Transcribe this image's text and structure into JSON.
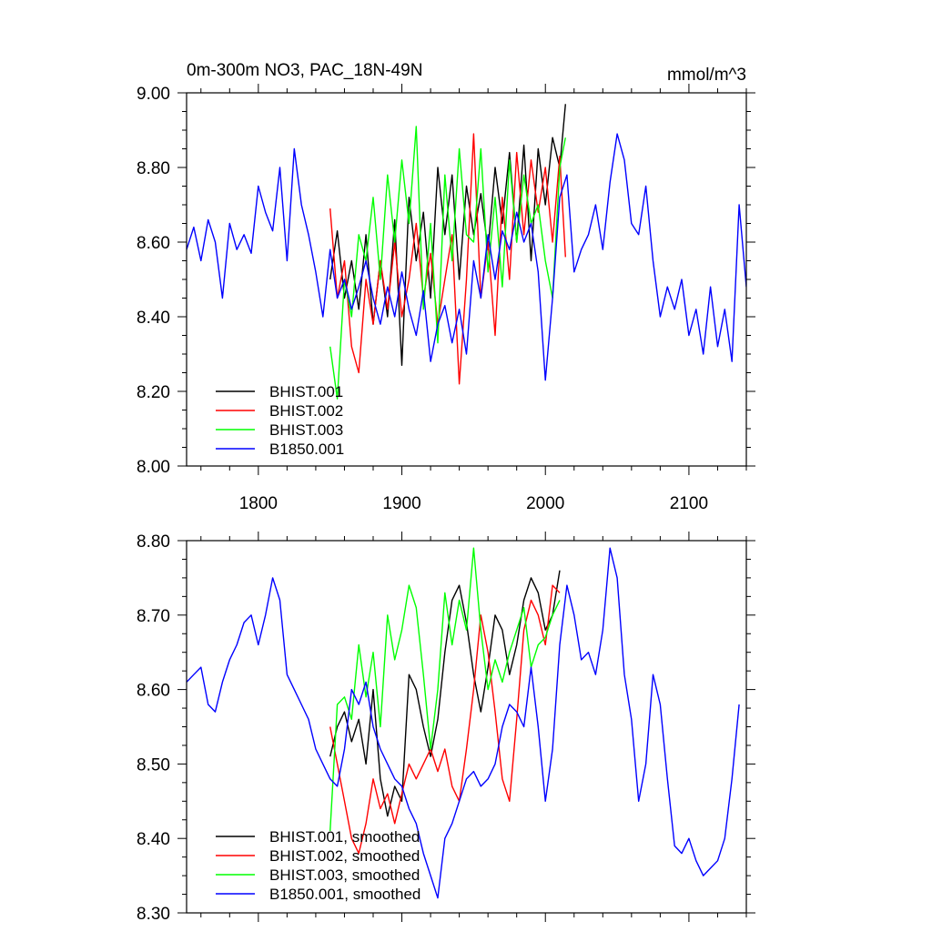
{
  "chart_data": [
    {
      "type": "line",
      "title": "0m-300m NO3, PAC_18N-49N",
      "units": "mmol/m^3",
      "xlabel": "",
      "ylabel": "",
      "xlim": [
        1750,
        2140
      ],
      "ylim": [
        8.0,
        9.0
      ],
      "y_ticks": [
        "8.00",
        "8.20",
        "8.40",
        "8.60",
        "8.80",
        "9.00"
      ],
      "x_ticks": [
        "1800",
        "1900",
        "2000",
        "2100"
      ],
      "legend_position": "bottom-left",
      "series": [
        {
          "name": "BHIST.001",
          "color": "#000000",
          "x": [
            1850,
            1855,
            1860,
            1865,
            1870,
            1875,
            1880,
            1885,
            1890,
            1895,
            1900,
            1905,
            1910,
            1915,
            1920,
            1925,
            1930,
            1935,
            1940,
            1945,
            1950,
            1955,
            1960,
            1965,
            1970,
            1975,
            1980,
            1985,
            1990,
            1995,
            2000,
            2005,
            2010,
            2014
          ],
          "y": [
            8.5,
            8.63,
            8.45,
            8.55,
            8.42,
            8.62,
            8.38,
            8.55,
            8.4,
            8.66,
            8.27,
            8.72,
            8.55,
            8.68,
            8.45,
            8.8,
            8.62,
            8.78,
            8.5,
            8.75,
            8.62,
            8.73,
            8.58,
            8.8,
            8.65,
            8.84,
            8.6,
            8.86,
            8.55,
            8.85,
            8.7,
            8.88,
            8.8,
            8.97
          ]
        },
        {
          "name": "BHIST.002",
          "color": "#ff0000",
          "x": [
            1850,
            1855,
            1860,
            1865,
            1870,
            1875,
            1880,
            1885,
            1890,
            1895,
            1900,
            1905,
            1910,
            1915,
            1920,
            1925,
            1930,
            1935,
            1940,
            1945,
            1950,
            1955,
            1960,
            1965,
            1970,
            1975,
            1980,
            1985,
            1990,
            1995,
            2000,
            2005,
            2010,
            2014
          ],
          "y": [
            8.69,
            8.45,
            8.55,
            8.32,
            8.25,
            8.5,
            8.38,
            8.55,
            8.42,
            8.6,
            8.4,
            8.5,
            8.65,
            8.45,
            8.57,
            8.38,
            8.5,
            8.62,
            8.22,
            8.5,
            8.89,
            8.45,
            8.6,
            8.35,
            8.72,
            8.5,
            8.84,
            8.62,
            8.82,
            8.68,
            8.8,
            8.6,
            8.83,
            8.56
          ]
        },
        {
          "name": "BHIST.003",
          "color": "#00ff00",
          "x": [
            1850,
            1855,
            1860,
            1865,
            1870,
            1875,
            1880,
            1885,
            1890,
            1895,
            1900,
            1905,
            1910,
            1915,
            1920,
            1925,
            1930,
            1935,
            1940,
            1945,
            1950,
            1955,
            1960,
            1965,
            1970,
            1975,
            1980,
            1985,
            1990,
            1995,
            2000,
            2005,
            2010,
            2014
          ],
          "y": [
            8.32,
            8.18,
            8.5,
            8.4,
            8.62,
            8.55,
            8.72,
            8.5,
            8.78,
            8.6,
            8.82,
            8.65,
            8.91,
            8.42,
            8.65,
            8.33,
            8.78,
            8.55,
            8.85,
            8.62,
            8.6,
            8.85,
            8.52,
            8.72,
            8.48,
            8.82,
            8.6,
            8.78,
            8.65,
            8.7,
            8.55,
            8.45,
            8.8,
            8.88
          ]
        },
        {
          "name": "B1850.001",
          "color": "#0000ff",
          "x": [
            1750,
            1755,
            1760,
            1765,
            1770,
            1775,
            1780,
            1785,
            1790,
            1795,
            1800,
            1805,
            1810,
            1815,
            1820,
            1825,
            1830,
            1835,
            1840,
            1845,
            1850,
            1855,
            1860,
            1865,
            1870,
            1875,
            1880,
            1885,
            1890,
            1895,
            1900,
            1905,
            1910,
            1915,
            1920,
            1925,
            1930,
            1935,
            1940,
            1945,
            1950,
            1955,
            1960,
            1965,
            1970,
            1975,
            1980,
            1985,
            1990,
            1995,
            2000,
            2005,
            2010,
            2015,
            2020,
            2025,
            2030,
            2035,
            2040,
            2045,
            2050,
            2055,
            2060,
            2065,
            2070,
            2075,
            2080,
            2085,
            2090,
            2095,
            2100,
            2105,
            2110,
            2115,
            2120,
            2125,
            2130,
            2135,
            2140
          ],
          "y": [
            8.58,
            8.64,
            8.55,
            8.66,
            8.6,
            8.45,
            8.65,
            8.58,
            8.62,
            8.57,
            8.75,
            8.68,
            8.63,
            8.8,
            8.55,
            8.85,
            8.7,
            8.62,
            8.52,
            8.4,
            8.58,
            8.45,
            8.5,
            8.42,
            8.48,
            8.55,
            8.45,
            8.38,
            8.48,
            8.4,
            8.52,
            8.42,
            8.35,
            8.47,
            8.28,
            8.38,
            8.43,
            8.33,
            8.42,
            8.3,
            8.55,
            8.45,
            8.62,
            8.5,
            8.63,
            8.58,
            8.68,
            8.6,
            8.65,
            8.52,
            8.23,
            8.45,
            8.72,
            8.78,
            8.52,
            8.58,
            8.62,
            8.7,
            8.58,
            8.76,
            8.89,
            8.82,
            8.65,
            8.62,
            8.75,
            8.55,
            8.4,
            8.48,
            8.42,
            8.5,
            8.35,
            8.42,
            8.3,
            8.48,
            8.32,
            8.42,
            8.28,
            8.7,
            8.48
          ]
        }
      ]
    },
    {
      "type": "line",
      "title": "",
      "xlabel": "",
      "ylabel": "",
      "xlim": [
        1750,
        2140
      ],
      "ylim": [
        8.3,
        8.8
      ],
      "y_ticks": [
        "8.30",
        "8.40",
        "8.50",
        "8.60",
        "8.70",
        "8.80"
      ],
      "x_ticks": [],
      "legend_position": "bottom-left",
      "series": [
        {
          "name": "BHIST.001, smoothed",
          "color": "#000000",
          "x": [
            1850,
            1855,
            1860,
            1865,
            1870,
            1875,
            1880,
            1885,
            1890,
            1895,
            1900,
            1905,
            1910,
            1915,
            1920,
            1925,
            1930,
            1935,
            1940,
            1945,
            1950,
            1955,
            1960,
            1965,
            1970,
            1975,
            1980,
            1985,
            1990,
            1995,
            2000,
            2005,
            2010
          ],
          "y": [
            8.51,
            8.55,
            8.57,
            8.53,
            8.56,
            8.5,
            8.6,
            8.48,
            8.43,
            8.47,
            8.45,
            8.62,
            8.6,
            8.55,
            8.51,
            8.56,
            8.65,
            8.72,
            8.74,
            8.69,
            8.62,
            8.57,
            8.63,
            8.7,
            8.68,
            8.62,
            8.66,
            8.72,
            8.75,
            8.73,
            8.68,
            8.7,
            8.76
          ]
        },
        {
          "name": "BHIST.002, smoothed",
          "color": "#ff0000",
          "x": [
            1850,
            1855,
            1860,
            1865,
            1870,
            1875,
            1880,
            1885,
            1890,
            1895,
            1900,
            1905,
            1910,
            1915,
            1920,
            1925,
            1930,
            1935,
            1940,
            1945,
            1950,
            1955,
            1960,
            1965,
            1970,
            1975,
            1980,
            1985,
            1990,
            1995,
            2000,
            2005,
            2010
          ],
          "y": [
            8.55,
            8.5,
            8.45,
            8.4,
            8.38,
            8.42,
            8.48,
            8.44,
            8.46,
            8.42,
            8.46,
            8.5,
            8.48,
            8.5,
            8.52,
            8.49,
            8.52,
            8.47,
            8.45,
            8.52,
            8.6,
            8.7,
            8.65,
            8.57,
            8.48,
            8.45,
            8.56,
            8.68,
            8.72,
            8.7,
            8.66,
            8.74,
            8.73
          ]
        },
        {
          "name": "BHIST.003, smoothed",
          "color": "#00ff00",
          "x": [
            1850,
            1855,
            1860,
            1865,
            1870,
            1875,
            1880,
            1885,
            1890,
            1895,
            1900,
            1905,
            1910,
            1915,
            1920,
            1925,
            1930,
            1935,
            1940,
            1945,
            1950,
            1955,
            1960,
            1965,
            1970,
            1975,
            1980,
            1985,
            1990,
            1995,
            2000,
            2005,
            2010
          ],
          "y": [
            8.41,
            8.58,
            8.59,
            8.56,
            8.66,
            8.59,
            8.65,
            8.55,
            8.7,
            8.64,
            8.68,
            8.74,
            8.71,
            8.62,
            8.52,
            8.6,
            8.73,
            8.66,
            8.72,
            8.68,
            8.79,
            8.68,
            8.6,
            8.64,
            8.61,
            8.65,
            8.68,
            8.71,
            8.63,
            8.66,
            8.67,
            8.7,
            8.72
          ]
        },
        {
          "name": "B1850.001, smoothed",
          "color": "#0000ff",
          "x": [
            1750,
            1755,
            1760,
            1765,
            1770,
            1775,
            1780,
            1785,
            1790,
            1795,
            1800,
            1805,
            1810,
            1815,
            1820,
            1825,
            1830,
            1835,
            1840,
            1845,
            1850,
            1855,
            1860,
            1865,
            1870,
            1875,
            1880,
            1885,
            1890,
            1895,
            1900,
            1905,
            1910,
            1915,
            1920,
            1925,
            1930,
            1935,
            1940,
            1945,
            1950,
            1955,
            1960,
            1965,
            1970,
            1975,
            1980,
            1985,
            1990,
            1995,
            2000,
            2005,
            2010,
            2015,
            2020,
            2025,
            2030,
            2035,
            2040,
            2045,
            2050,
            2055,
            2060,
            2065,
            2070,
            2075,
            2080,
            2085,
            2090,
            2095,
            2100,
            2105,
            2110,
            2115,
            2120,
            2125,
            2130,
            2135
          ],
          "y": [
            8.61,
            8.62,
            8.63,
            8.58,
            8.57,
            8.61,
            8.64,
            8.66,
            8.69,
            8.7,
            8.66,
            8.7,
            8.75,
            8.72,
            8.62,
            8.6,
            8.58,
            8.56,
            8.52,
            8.5,
            8.48,
            8.47,
            8.52,
            8.6,
            8.58,
            8.61,
            8.55,
            8.52,
            8.5,
            8.48,
            8.47,
            8.44,
            8.42,
            8.38,
            8.35,
            8.32,
            8.4,
            8.42,
            8.45,
            8.48,
            8.49,
            8.47,
            8.48,
            8.5,
            8.55,
            8.58,
            8.57,
            8.55,
            8.63,
            8.55,
            8.45,
            8.52,
            8.66,
            8.74,
            8.7,
            8.64,
            8.65,
            8.62,
            8.68,
            8.79,
            8.75,
            8.62,
            8.56,
            8.45,
            8.5,
            8.62,
            8.58,
            8.48,
            8.39,
            8.38,
            8.4,
            8.37,
            8.35,
            8.36,
            8.37,
            8.4,
            8.48,
            8.58
          ]
        }
      ]
    }
  ]
}
